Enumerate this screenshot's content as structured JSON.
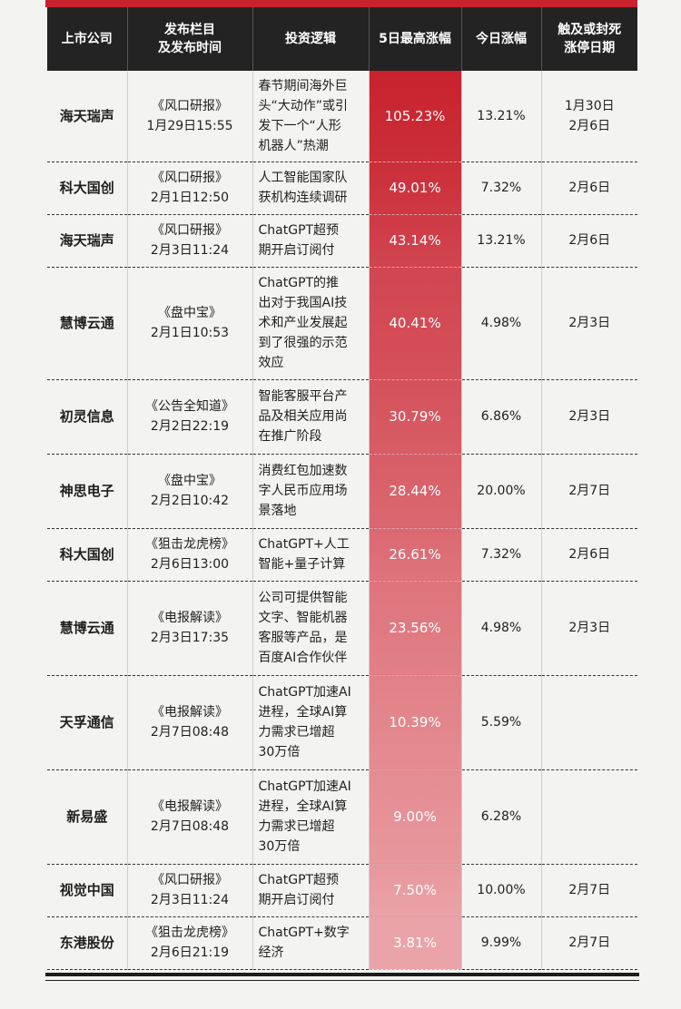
{
  "header": {
    "company": "上市公司",
    "column_line1": "发布栏目",
    "column_line2": "及发布时间",
    "logic": "投资逻辑",
    "gain5": "5日最高涨幅",
    "today": "今日涨幅",
    "limit_line1": "触及或封死",
    "limit_line2": "涨停日期"
  },
  "colors": {
    "header_bg": "#232323",
    "accent_red": "#c8222e",
    "gain_top": "#c8222e",
    "gain_bottom": "#eaa1a6"
  },
  "rows": [
    {
      "company": "海天瑞声",
      "column": [
        "《风口研报》",
        "1月29日15:55"
      ],
      "logic": [
        "春节期间海外巨",
        "头“大动作”或引",
        "发下一个“人形",
        "机器人”热潮"
      ],
      "gain5": "105.23%",
      "today": "13.21%",
      "dates": [
        "1月30日",
        "2月6日"
      ]
    },
    {
      "company": "科大国创",
      "column": [
        "《风口研报》",
        "2月1日12:50"
      ],
      "logic": [
        "人工智能国家队",
        "获机构连续调研"
      ],
      "gain5": "49.01%",
      "today": "7.32%",
      "dates": [
        "2月6日"
      ]
    },
    {
      "company": "海天瑞声",
      "column": [
        "《风口研报》",
        "2月3日11:24"
      ],
      "logic": [
        "ChatGPT超预",
        "期开启订阅付"
      ],
      "gain5": "43.14%",
      "today": "13.21%",
      "dates": [
        "2月6日"
      ]
    },
    {
      "company": "慧博云通",
      "column": [
        "《盘中宝》",
        "2月1日10:53"
      ],
      "logic": [
        "ChatGPT的推",
        "出对于我国AI技",
        "术和产业发展起",
        "到了很强的示范",
        "效应"
      ],
      "gain5": "40.41%",
      "today": "4.98%",
      "dates": [
        "2月3日"
      ]
    },
    {
      "company": "初灵信息",
      "column": [
        "《公告全知道》",
        "2月2日22:19"
      ],
      "logic": [
        "智能客服平台产",
        "品及相关应用尚",
        "在推广阶段"
      ],
      "gain5": "30.79%",
      "today": "6.86%",
      "dates": [
        "2月3日"
      ]
    },
    {
      "company": "神思电子",
      "column": [
        "《盘中宝》",
        "2月2日10:42"
      ],
      "logic": [
        "消费红包加速数",
        "字人民币应用场",
        "景落地"
      ],
      "gain5": "28.44%",
      "today": "20.00%",
      "dates": [
        "2月7日"
      ]
    },
    {
      "company": "科大国创",
      "column": [
        "《狙击龙虎榜》",
        "2月6日13:00"
      ],
      "logic": [
        "ChatGPT+人工",
        "智能+量子计算"
      ],
      "gain5": "26.61%",
      "today": "7.32%",
      "dates": [
        "2月6日"
      ]
    },
    {
      "company": "慧博云通",
      "column": [
        "《电报解读》",
        "2月3日17:35"
      ],
      "logic": [
        "公司可提供智能",
        "文字、智能机器",
        "客服等产品，是",
        "百度AI合作伙伴"
      ],
      "gain5": "23.56%",
      "today": "4.98%",
      "dates": [
        "2月3日"
      ]
    },
    {
      "company": "天孚通信",
      "column": [
        "《电报解读》",
        "2月7日08:48"
      ],
      "logic": [
        "ChatGPT加速AI",
        "进程，全球AI算",
        "力需求已增超",
        "30万倍"
      ],
      "gain5": "10.39%",
      "today": "5.59%",
      "dates": []
    },
    {
      "company": "新易盛",
      "column": [
        "《电报解读》",
        "2月7日08:48"
      ],
      "logic": [
        "ChatGPT加速AI",
        "进程，全球AI算",
        "力需求已增超",
        "30万倍"
      ],
      "gain5": "9.00%",
      "today": "6.28%",
      "dates": []
    },
    {
      "company": "视觉中国",
      "column": [
        "《风口研报》",
        "2月3日11:24"
      ],
      "logic": [
        "ChatGPT超预",
        "期开启订阅付"
      ],
      "gain5": "7.50%",
      "today": "10.00%",
      "dates": [
        "2月7日"
      ]
    },
    {
      "company": "东港股份",
      "column": [
        "《狙击龙虎榜》",
        "2月6日21:19"
      ],
      "logic": [
        "ChatGPT+数字",
        "经济"
      ],
      "gain5": "3.81%",
      "today": "9.99%",
      "dates": [
        "2月7日"
      ]
    }
  ]
}
